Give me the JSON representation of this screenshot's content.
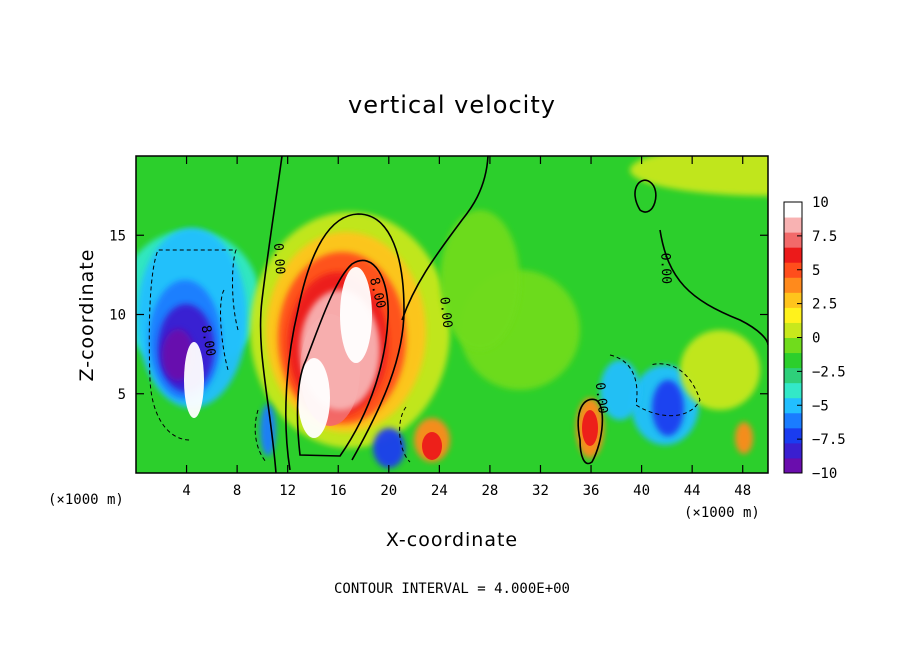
{
  "chart_data": {
    "type": "heatmap",
    "title": "vertical velocity",
    "xlabel": "X-coordinate",
    "ylabel": "Z-coordinate",
    "x_unit_left": "(×1000 m)",
    "x_unit_right": "(×1000 m)",
    "footer": "CONTOUR INTERVAL = 4.000E+00",
    "xlim": [
      0,
      50
    ],
    "ylim": [
      0,
      20
    ],
    "x_ticks": [
      "4",
      "8",
      "12",
      "16",
      "20",
      "24",
      "28",
      "32",
      "36",
      "40",
      "44",
      "48"
    ],
    "y_ticks": [
      "5",
      "10",
      "15"
    ],
    "colorbar": {
      "range": [
        -10,
        10
      ],
      "ticks": [
        "10",
        "7.5",
        "5",
        "2.5",
        "0",
        "−2.5",
        "−5",
        "−7.5",
        "−10"
      ],
      "colors": [
        "#6a0dad",
        "#3a1fd0",
        "#1a3cf0",
        "#1a7cff",
        "#22bfff",
        "#33e8c8",
        "#2ed07a",
        "#2ccf2c",
        "#70dc1c",
        "#c8e81c",
        "#fff21c",
        "#ffc41c",
        "#ff8a1c",
        "#ff4e1c",
        "#ec1a1a",
        "#f26a6a",
        "#f8b2b2",
        "#ffffff"
      ]
    },
    "contour_labels": [
      {
        "text": "0.00",
        "x": 11.0,
        "z": 13.5,
        "angle": 86
      },
      {
        "text": "8.00",
        "x": 18.8,
        "z": 11.3,
        "angle": 76
      },
      {
        "text": "0.00",
        "x": 24.2,
        "z": 10.1,
        "angle": 84
      },
      {
        "text": "8.00",
        "x": 5.4,
        "z": 8.3,
        "angle": 80
      },
      {
        "text": "0.00",
        "x": 41.6,
        "z": 12.9,
        "angle": 88
      },
      {
        "text": "0.00",
        "x": 36.5,
        "z": 4.7,
        "angle": 84
      }
    ]
  }
}
